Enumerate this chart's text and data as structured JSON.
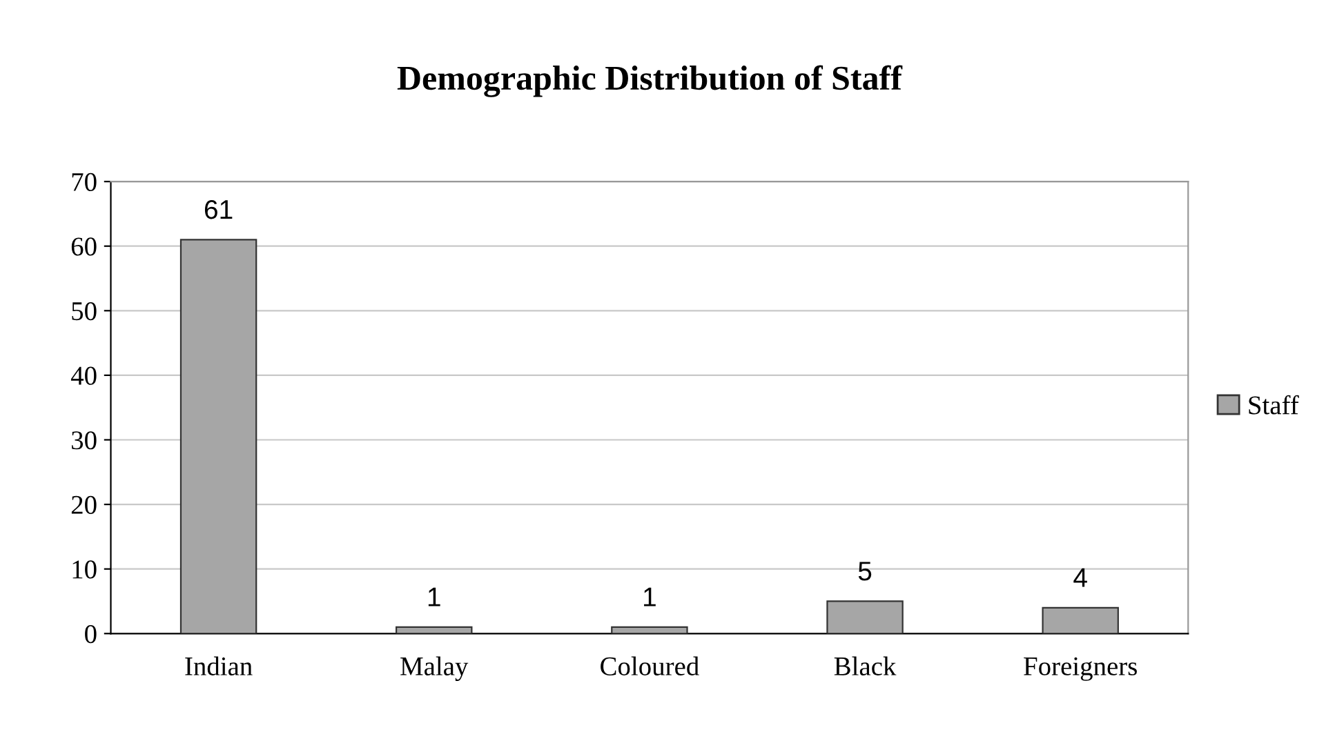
{
  "chart_data": {
    "type": "bar",
    "title": "Demographic Distribution of Staff",
    "categories": [
      "Indian",
      "Malay",
      "Coloured",
      "Black",
      "Foreigners"
    ],
    "series": [
      {
        "name": "Staff",
        "color": "#a6a6a6",
        "values": [
          61,
          1,
          1,
          5,
          4
        ]
      }
    ],
    "ylim": [
      0,
      70
    ],
    "yticks": [
      0,
      10,
      20,
      30,
      40,
      50,
      60,
      70
    ],
    "grid": "y",
    "legend": "right",
    "data_labels": true
  }
}
